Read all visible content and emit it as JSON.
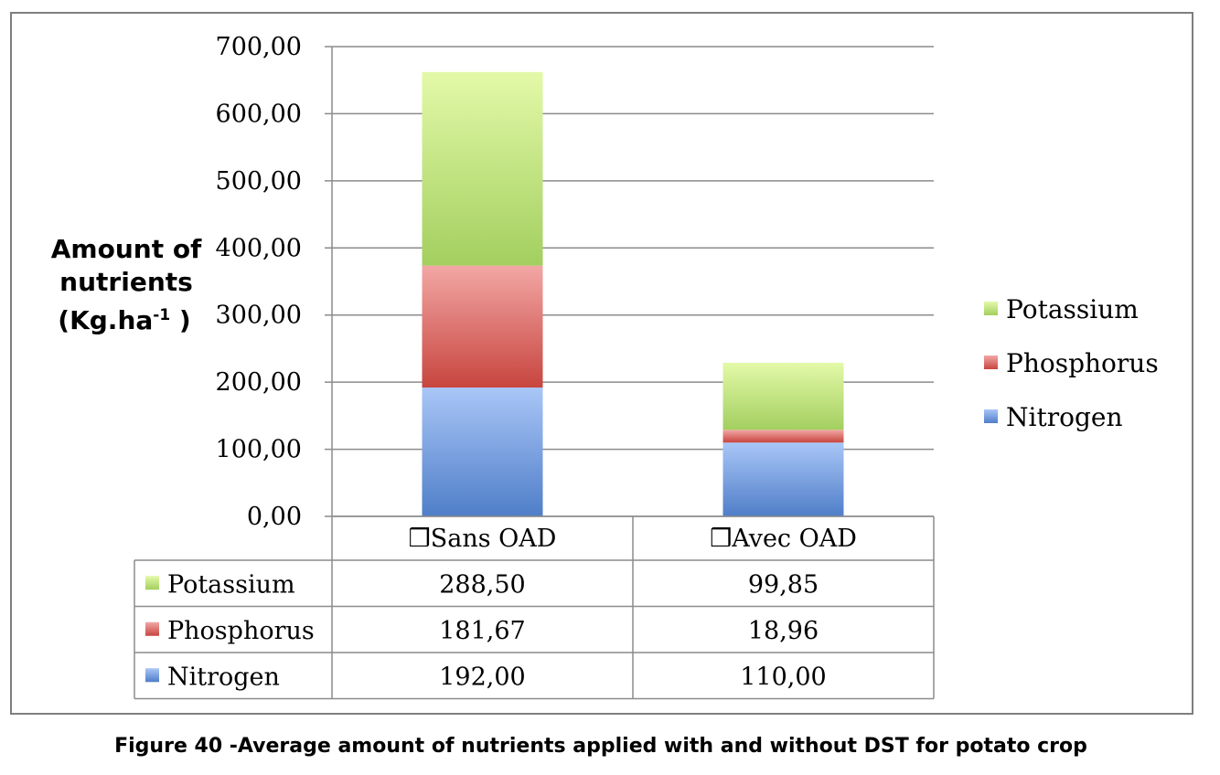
{
  "chart_data": {
    "type": "bar",
    "stacked": true,
    "categories": [
      "❒Sans OAD",
      "❒Avec OAD"
    ],
    "series": [
      {
        "name": "Nitrogen",
        "values": [
          192.0,
          110.0
        ],
        "labels": [
          "192,00",
          "110,00"
        ],
        "color": "#5b8fd9"
      },
      {
        "name": "Phosphorus",
        "values": [
          181.67,
          18.96
        ],
        "labels": [
          "181,67",
          "18,96"
        ],
        "color": "#d9534f"
      },
      {
        "name": "Potassium",
        "values": [
          288.5,
          99.85
        ],
        "labels": [
          "288,50",
          "99,85"
        ],
        "color": "#a9d66a"
      }
    ],
    "ylim": [
      0,
      700
    ],
    "yticks": [
      0,
      100,
      200,
      300,
      400,
      500,
      600,
      700
    ],
    "ytick_labels": [
      "0,00",
      "100,00",
      "200,00",
      "300,00",
      "400,00",
      "500,00",
      "600,00",
      "700,00"
    ],
    "ylabel": {
      "line1": "Amount of",
      "line2": "nutrients",
      "line3_main": "(Kg.ha",
      "line3_sup": "-1",
      "line3_end": " )"
    },
    "grid": true,
    "legend": {
      "placement": "right",
      "order": [
        "Potassium",
        "Phosphorus",
        "Nitrogen"
      ]
    },
    "data_table": {
      "rows": [
        "Potassium",
        "Phosphorus",
        "Nitrogen"
      ]
    }
  },
  "caption": "Figure 40 -Average amount of nutrients applied with and without DST for potato crop"
}
